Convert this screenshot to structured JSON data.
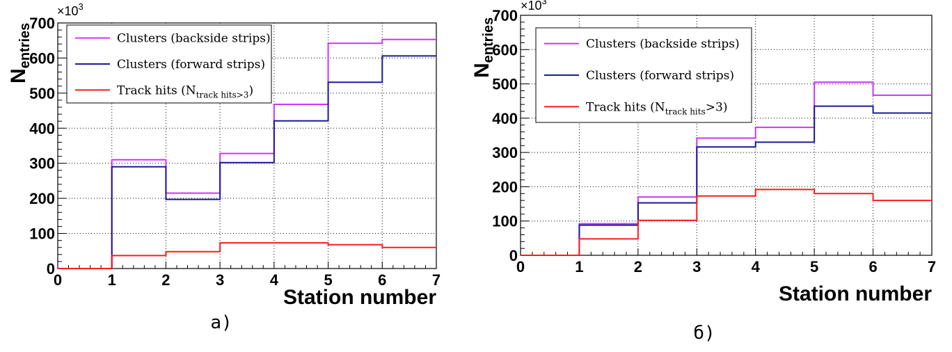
{
  "chart_data": [
    {
      "type": "line",
      "caption": "а)",
      "xlabel": "Station number",
      "ylabel": "N",
      "ylabel_sub": "entries",
      "y_multiplier": "×10",
      "y_multiplier_exp": "3",
      "xlim": [
        0,
        7
      ],
      "ylim": [
        0,
        700
      ],
      "x_ticks": [
        "0",
        "1",
        "2",
        "3",
        "4",
        "5",
        "6",
        "7"
      ],
      "y_ticks": [
        "0",
        "100",
        "200",
        "300",
        "400",
        "500",
        "600",
        "700"
      ],
      "grid": true,
      "legend_position": "top-left",
      "series": [
        {
          "name": "Clusters (backside strips)",
          "color": "#cc33ff",
          "bin_edges": [
            0,
            1,
            2,
            3,
            4,
            5,
            6,
            7
          ],
          "values": [
            0,
            310,
            215,
            328,
            468,
            642,
            653
          ]
        },
        {
          "name": "Clusters (forward strips)",
          "color": "#1a1a99",
          "bin_edges": [
            0,
            1,
            2,
            3,
            4,
            5,
            6,
            7
          ],
          "values": [
            0,
            290,
            197,
            302,
            421,
            531,
            606
          ]
        },
        {
          "name": "Track hits (N",
          "name_sub": "track hits>3",
          "name_tail": ")",
          "color": "#ff1a1a",
          "bin_edges": [
            0,
            1,
            2,
            3,
            4,
            5,
            6,
            7
          ],
          "values": [
            0,
            37,
            48,
            73,
            73,
            68,
            60
          ]
        }
      ]
    },
    {
      "type": "line",
      "caption": "б)",
      "xlabel": "Station number",
      "ylabel": "N",
      "ylabel_sub": "entries",
      "y_multiplier": "×10",
      "y_multiplier_exp": "3",
      "xlim": [
        0,
        7
      ],
      "ylim": [
        0,
        700
      ],
      "x_ticks": [
        "0",
        "1",
        "2",
        "3",
        "4",
        "5",
        "6",
        "7"
      ],
      "y_ticks": [
        "0",
        "100",
        "200",
        "300",
        "400",
        "500",
        "600",
        "700"
      ],
      "grid": true,
      "legend_position": "top-left",
      "series": [
        {
          "name": "Clusters (backside strips)",
          "color": "#cc33ff",
          "bin_edges": [
            0,
            1,
            2,
            3,
            4,
            5,
            6,
            7
          ],
          "values": [
            0,
            92,
            170,
            342,
            373,
            505,
            467
          ]
        },
        {
          "name": "Clusters (forward strips)",
          "color": "#1a1a99",
          "bin_edges": [
            0,
            1,
            2,
            3,
            4,
            5,
            6,
            7
          ],
          "values": [
            0,
            88,
            153,
            316,
            330,
            435,
            415
          ]
        },
        {
          "name": "Track hits (N",
          "name_sub": "track hits",
          "name_tail": ">3)",
          "color": "#ff1a1a",
          "bin_edges": [
            0,
            1,
            2,
            3,
            4,
            5,
            6,
            7
          ],
          "values": [
            0,
            48,
            102,
            173,
            192,
            180,
            160
          ]
        }
      ]
    }
  ]
}
